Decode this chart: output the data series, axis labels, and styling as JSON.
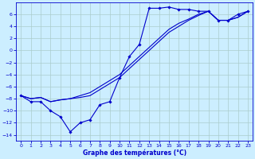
{
  "xlim": [
    -0.5,
    23.5
  ],
  "ylim": [
    -15,
    8
  ],
  "yticks": [
    -14,
    -12,
    -10,
    -8,
    -6,
    -4,
    -2,
    0,
    2,
    4,
    6
  ],
  "xticks": [
    0,
    1,
    2,
    3,
    4,
    5,
    6,
    7,
    8,
    9,
    10,
    11,
    12,
    13,
    14,
    15,
    16,
    17,
    18,
    19,
    20,
    21,
    22,
    23
  ],
  "bg_color": "#cceeff",
  "line_color": "#0000cc",
  "grid_color": "#aacccc",
  "curve_marker_x": [
    0,
    1,
    2,
    3,
    4,
    5,
    6,
    7,
    8,
    9,
    10,
    11,
    12,
    13,
    14,
    15,
    16,
    17,
    18,
    19,
    20,
    21,
    22,
    23
  ],
  "curve_marker_y": [
    -7.5,
    -8.5,
    -8.5,
    -10,
    -11,
    -13.5,
    -12,
    -11.5,
    -9,
    -8.5,
    -4.5,
    -1,
    1,
    7,
    7,
    7.2,
    6.8,
    6.8,
    6.5,
    6.5,
    5,
    5,
    6,
    6.5
  ],
  "curve_diag1_x": [
    0,
    1,
    2,
    3,
    4,
    5,
    6,
    7,
    8,
    9,
    10,
    11,
    12,
    13,
    14,
    15,
    16,
    17,
    18,
    19,
    20,
    21,
    22,
    23
  ],
  "curve_diag1_y": [
    -7.5,
    -8.0,
    -7.8,
    -8.5,
    -8.2,
    -8.0,
    -7.8,
    -7.5,
    -6.5,
    -5.5,
    -4.5,
    -3.0,
    -1.5,
    0.0,
    1.5,
    3.0,
    4.0,
    5.0,
    5.8,
    6.5,
    5.0,
    5.0,
    5.5,
    6.5
  ],
  "curve_diag2_x": [
    0,
    1,
    2,
    3,
    4,
    5,
    6,
    7,
    8,
    9,
    10,
    11,
    12,
    13,
    14,
    15,
    16,
    17,
    18,
    19,
    20,
    21,
    22,
    23
  ],
  "curve_diag2_y": [
    -7.5,
    -8.0,
    -7.8,
    -8.5,
    -8.2,
    -8.0,
    -7.5,
    -7.0,
    -6.0,
    -5.0,
    -4.0,
    -2.5,
    -1.0,
    0.5,
    2.0,
    3.5,
    4.5,
    5.2,
    6.0,
    6.5,
    5.0,
    5.0,
    5.5,
    6.5
  ],
  "xlabel": "Graphe des températures (°C)"
}
